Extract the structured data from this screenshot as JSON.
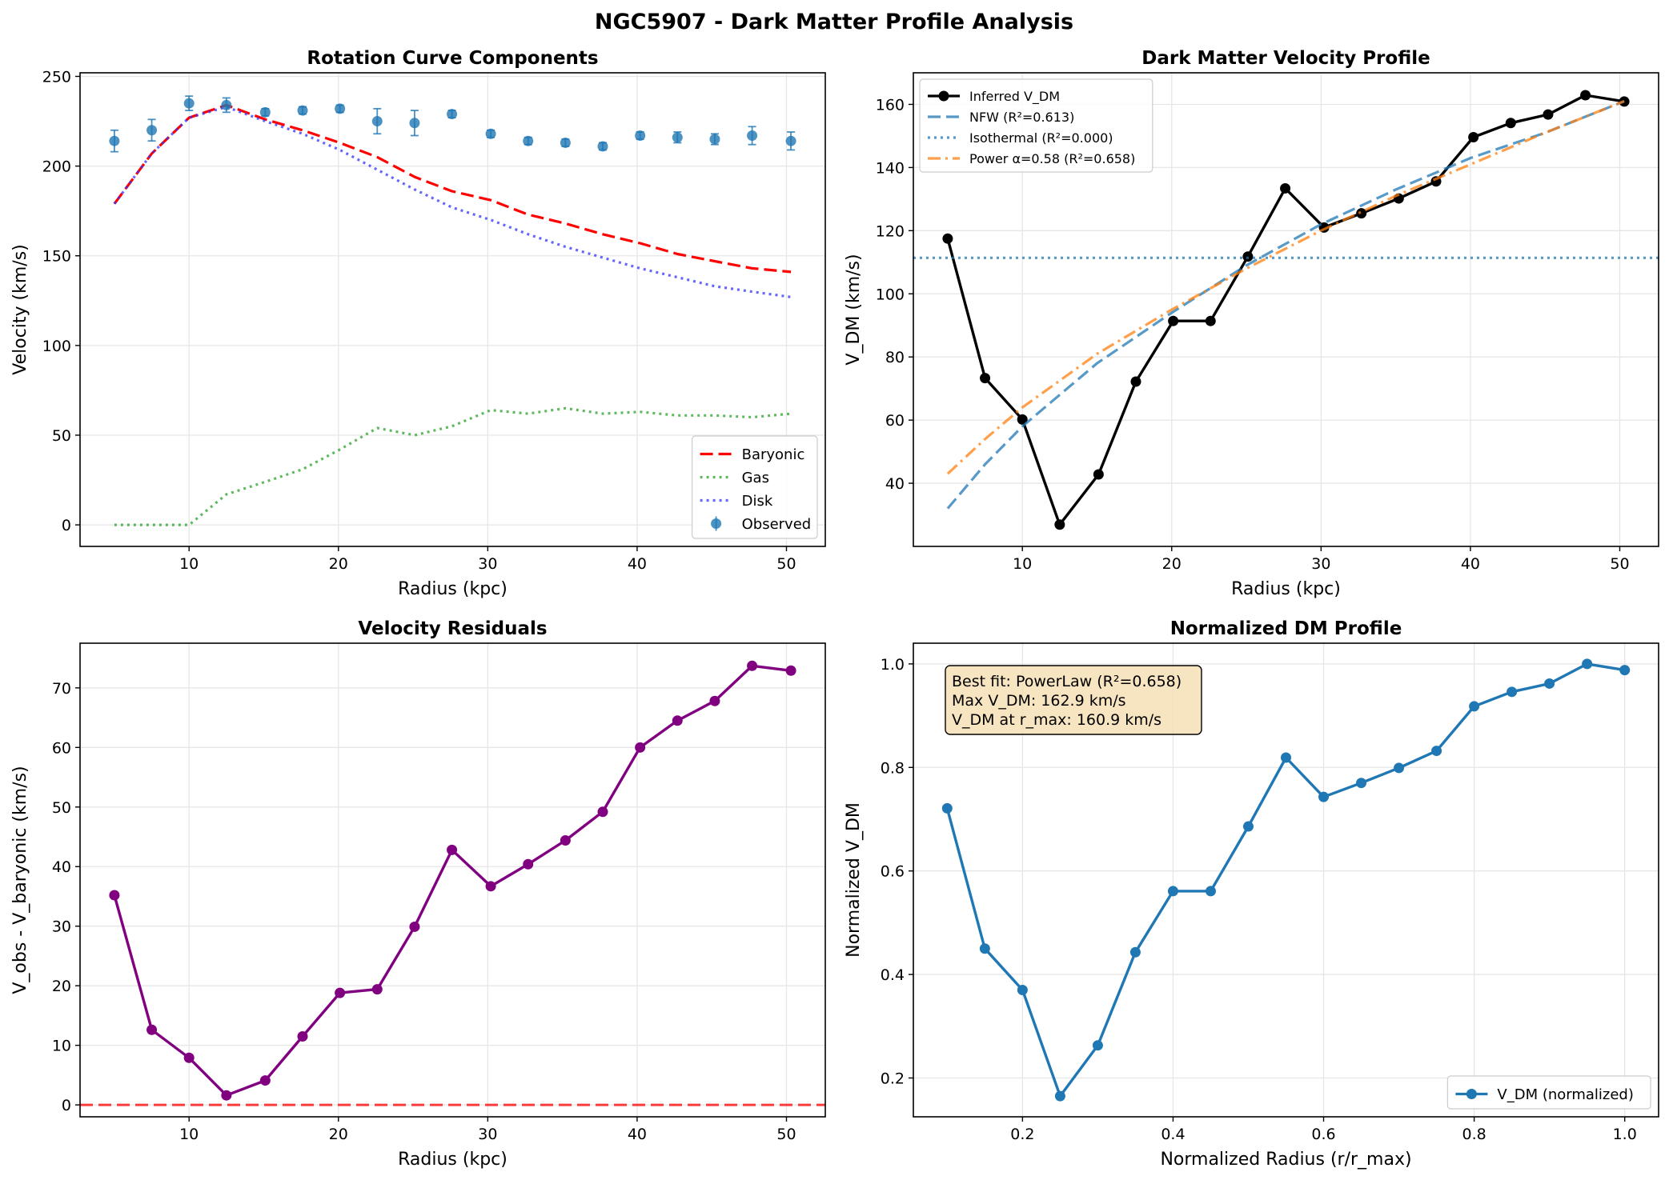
{
  "figure": {
    "title": "NGC5907 - Dark Matter Profile Analysis"
  },
  "chart_data": [
    {
      "type": "line",
      "title": "Rotation Curve Components",
      "xlabel": "Radius (kpc)",
      "ylabel": "Velocity (km/s)",
      "xlim": [
        2.7,
        52.6
      ],
      "ylim": [
        -12,
        252
      ],
      "xticks": [
        10,
        20,
        30,
        40,
        50
      ],
      "yticks": [
        0,
        50,
        100,
        150,
        200,
        250
      ],
      "grid": true,
      "legend_position": "lower right",
      "x": [
        5.0,
        7.5,
        10.0,
        12.5,
        15.1,
        17.6,
        20.1,
        22.6,
        25.1,
        27.6,
        30.2,
        32.7,
        35.2,
        37.7,
        40.2,
        42.7,
        45.2,
        47.7,
        50.3
      ],
      "series": [
        {
          "name": "Baryonic",
          "style": "dashed",
          "color": "#ff0000",
          "values": [
            179,
            207,
            227,
            234,
            226,
            220,
            213,
            205,
            194,
            186,
            181,
            173,
            168,
            162,
            157,
            151,
            147,
            143,
            141
          ]
        },
        {
          "name": "Gas",
          "style": "dotted",
          "color": "#2ca02c",
          "values": [
            0,
            0,
            0,
            17,
            24,
            31,
            42,
            54,
            50,
            55,
            64,
            62,
            65,
            62,
            63,
            61,
            61,
            60,
            62
          ]
        },
        {
          "name": "Disk",
          "style": "dotted",
          "color": "#3333ff",
          "values": [
            179,
            207,
            227,
            233,
            225,
            218,
            209,
            198,
            187,
            177,
            170,
            162,
            155,
            149,
            143,
            138,
            133,
            130,
            127
          ]
        },
        {
          "name": "Observed",
          "style": "errorbar",
          "color": "#1f77b4",
          "values": [
            214,
            220,
            235,
            234,
            230,
            231,
            232,
            225,
            224,
            229,
            218,
            214,
            213,
            211,
            217,
            216,
            215,
            217,
            214
          ],
          "errors": [
            6,
            6,
            4,
            4,
            2,
            2,
            2,
            7,
            7,
            2,
            2,
            2,
            2,
            2,
            2,
            3,
            3,
            5,
            5
          ]
        }
      ]
    },
    {
      "type": "line",
      "title": "Dark Matter Velocity Profile",
      "xlabel": "Radius (kpc)",
      "ylabel": "V_DM (km/s)",
      "xlim": [
        2.7,
        52.6
      ],
      "ylim": [
        20,
        170
      ],
      "xticks": [
        10,
        20,
        30,
        40,
        50
      ],
      "yticks": [
        40,
        60,
        80,
        100,
        120,
        140,
        160
      ],
      "grid": true,
      "legend_position": "upper left",
      "x": [
        5.0,
        7.5,
        10.0,
        12.5,
        15.1,
        17.6,
        20.1,
        22.6,
        25.1,
        27.6,
        30.2,
        32.7,
        35.2,
        37.7,
        40.2,
        42.7,
        45.2,
        47.7,
        50.3
      ],
      "series": [
        {
          "name": "Inferred V_DM",
          "style": "line-marker",
          "color": "#000000",
          "values": [
            117.5,
            73.3,
            60.2,
            26.9,
            42.8,
            72.2,
            91.4,
            91.4,
            111.8,
            133.4,
            121.0,
            125.5,
            130.2,
            135.6,
            149.6,
            154.1,
            156.8,
            162.9,
            160.9
          ]
        },
        {
          "name": "NFW (R²=0.613)",
          "style": "dashed",
          "color": "#1f77b4",
          "x": [
            5,
            7.5,
            10,
            15,
            20,
            25,
            30,
            35,
            40,
            45,
            50.3
          ],
          "values": [
            32,
            46,
            58,
            78,
            94,
            109,
            122,
            133,
            143,
            151,
            161
          ]
        },
        {
          "name": "Isothermal (R²=0.000)",
          "style": "dotted",
          "color": "#1f77b4",
          "x": [
            2.7,
            52.6
          ],
          "values": [
            111.4,
            111.4
          ]
        },
        {
          "name": "Power α=0.58 (R²=0.658)",
          "style": "dashdot",
          "color": "#ff7f0e",
          "x": [
            5,
            7.5,
            10,
            15,
            20,
            25,
            30,
            35,
            40,
            45,
            50.3
          ],
          "values": [
            43,
            54,
            64,
            81,
            95,
            108,
            120,
            131,
            141,
            151,
            161
          ]
        }
      ]
    },
    {
      "type": "line",
      "title": "Velocity Residuals",
      "xlabel": "Radius (kpc)",
      "ylabel": "V_obs - V_baryonic (km/s)",
      "xlim": [
        2.7,
        52.6
      ],
      "ylim": [
        -2,
        77.5
      ],
      "xticks": [
        10,
        20,
        30,
        40,
        50
      ],
      "yticks": [
        0,
        10,
        20,
        30,
        40,
        50,
        60,
        70
      ],
      "grid": true,
      "reference_line": {
        "y": 0,
        "style": "dashed",
        "color": "#ff0000"
      },
      "x": [
        5.0,
        7.5,
        10.0,
        12.5,
        15.1,
        17.6,
        20.1,
        22.6,
        25.1,
        27.6,
        30.2,
        32.7,
        35.2,
        37.7,
        40.2,
        42.7,
        45.2,
        47.7,
        50.3
      ],
      "series": [
        {
          "style": "line-marker",
          "color": "#800080",
          "values": [
            35.2,
            12.6,
            7.9,
            1.6,
            4.1,
            11.5,
            18.8,
            19.4,
            29.9,
            42.8,
            36.7,
            40.4,
            44.4,
            49.2,
            60.0,
            64.5,
            67.8,
            73.7,
            72.9
          ]
        }
      ]
    },
    {
      "type": "line",
      "title": "Normalized DM Profile",
      "xlabel": "Normalized Radius (r/r_max)",
      "ylabel": "Normalized V_DM",
      "xlim": [
        0.055,
        1.045
      ],
      "ylim": [
        0.125,
        1.04
      ],
      "xticks": [
        0.2,
        0.4,
        0.6,
        0.8,
        1.0
      ],
      "yticks": [
        0.2,
        0.4,
        0.6,
        0.8,
        1.0
      ],
      "grid": true,
      "legend_position": "lower right",
      "annotation": [
        "Best fit: PowerLaw (R²=0.658)",
        "Max V_DM: 162.9 km/s",
        "V_DM at r_max: 160.9 km/s"
      ],
      "x": [
        0.1,
        0.15,
        0.2,
        0.25,
        0.3,
        0.35,
        0.4,
        0.45,
        0.5,
        0.55,
        0.6,
        0.65,
        0.7,
        0.75,
        0.8,
        0.85,
        0.9,
        0.95,
        1.0
      ],
      "series": [
        {
          "name": "V_DM (normalized)",
          "style": "line-marker",
          "color": "#1f77b4",
          "values": [
            0.721,
            0.45,
            0.37,
            0.165,
            0.263,
            0.443,
            0.561,
            0.561,
            0.686,
            0.819,
            0.743,
            0.77,
            0.799,
            0.832,
            0.918,
            0.946,
            0.962,
            1.0,
            0.988
          ]
        }
      ]
    }
  ]
}
